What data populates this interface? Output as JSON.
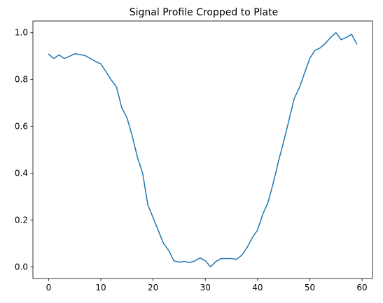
{
  "chart_data": {
    "type": "line",
    "title": "Signal Profile Cropped to Plate",
    "xlabel": "",
    "ylabel": "",
    "xlim": [
      -3.0,
      62.0
    ],
    "ylim": [
      -0.05,
      1.05
    ],
    "x_ticks": [
      0,
      10,
      20,
      30,
      40,
      50,
      60
    ],
    "x_tick_labels": [
      "0",
      "10",
      "20",
      "30",
      "40",
      "50",
      "60"
    ],
    "y_ticks": [
      0.0,
      0.2,
      0.4,
      0.6,
      0.8,
      1.0
    ],
    "y_tick_labels": [
      "0.0",
      "0.2",
      "0.4",
      "0.6",
      "0.8",
      "1.0"
    ],
    "grid": false,
    "series": [
      {
        "color": "#1f77b4",
        "x": [
          0,
          1,
          2,
          3,
          4,
          5,
          6,
          7,
          8,
          9,
          10,
          11,
          12,
          13,
          14,
          15,
          16,
          17,
          18,
          19,
          20,
          21,
          22,
          23,
          24,
          25,
          26,
          27,
          28,
          29,
          30,
          31,
          32,
          33,
          34,
          35,
          36,
          37,
          38,
          39,
          40,
          41,
          42,
          43,
          44,
          45,
          46,
          47,
          48,
          49,
          50,
          51,
          52,
          53,
          54,
          55,
          56,
          57,
          58,
          59
        ],
        "values": [
          0.908,
          0.89,
          0.905,
          0.89,
          0.899,
          0.91,
          0.907,
          0.902,
          0.89,
          0.877,
          0.867,
          0.833,
          0.798,
          0.768,
          0.68,
          0.637,
          0.56,
          0.468,
          0.4,
          0.265,
          0.21,
          0.155,
          0.1,
          0.07,
          0.025,
          0.02,
          0.023,
          0.018,
          0.025,
          0.038,
          0.026,
          0.0,
          0.022,
          0.035,
          0.035,
          0.035,
          0.032,
          0.05,
          0.082,
          0.125,
          0.157,
          0.225,
          0.275,
          0.357,
          0.45,
          0.535,
          0.625,
          0.718,
          0.765,
          0.828,
          0.89,
          0.925,
          0.935,
          0.955,
          0.98,
          1.0,
          0.97,
          0.98,
          0.993,
          0.952
        ]
      }
    ]
  }
}
